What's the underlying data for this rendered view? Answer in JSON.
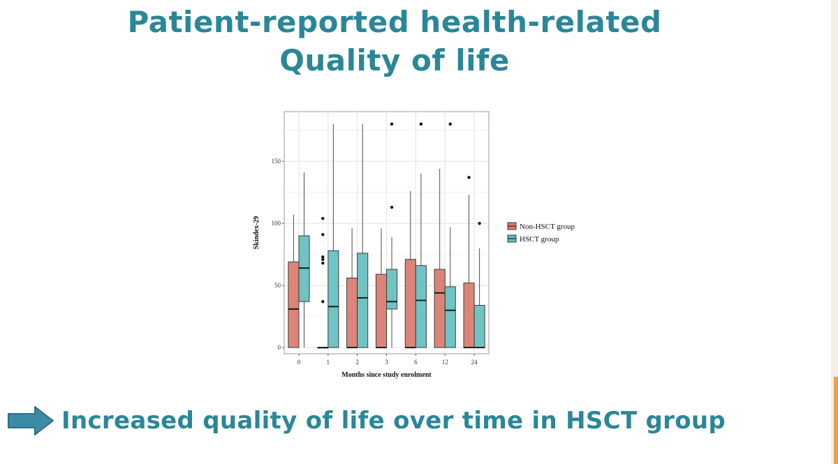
{
  "slide": {
    "title_line1": "Patient-reported health-related",
    "title_line2": "Quality of life",
    "takeaway": "Increased quality of life over time in HSCT group"
  },
  "colors": {
    "title": "#2a8797",
    "non_hsct": "#d9776a",
    "hsct": "#5fbdbd",
    "arrow": "#3b8aa6"
  },
  "chart_data": {
    "type": "boxplot",
    "xlabel": "Months since study enrolment",
    "ylabel": "Skindex-29",
    "ylim": [
      -5,
      190
    ],
    "yticks": [
      0,
      50,
      100,
      150
    ],
    "grid": true,
    "legend_position": "right",
    "categories": [
      "0",
      "1",
      "2",
      "3",
      "6",
      "12",
      "24"
    ],
    "series": [
      {
        "name": "Non-HSCT group",
        "color": "#d9776a",
        "boxes": [
          {
            "low": 0,
            "q1": 0,
            "median": 31,
            "q3": 69,
            "high": 107,
            "outliers": []
          },
          {
            "low": 0,
            "q1": 0,
            "median": 0,
            "q3": 0,
            "high": 0,
            "outliers": [
              37,
              68,
              71,
              73,
              91,
              104
            ]
          },
          {
            "low": 0,
            "q1": 0,
            "median": 0,
            "q3": 56,
            "high": 96,
            "outliers": []
          },
          {
            "low": 0,
            "q1": 0,
            "median": 0,
            "q3": 59,
            "high": 96,
            "outliers": []
          },
          {
            "low": 0,
            "q1": 0,
            "median": 0,
            "q3": 71,
            "high": 126,
            "outliers": []
          },
          {
            "low": 0,
            "q1": 0,
            "median": 44,
            "q3": 63,
            "high": 144,
            "outliers": []
          },
          {
            "low": 0,
            "q1": 0,
            "median": 0,
            "q3": 52,
            "high": 123,
            "outliers": [
              137
            ]
          }
        ]
      },
      {
        "name": "HSCT group",
        "color": "#5fbdbd",
        "boxes": [
          {
            "low": 0,
            "q1": 37,
            "median": 64,
            "q3": 90,
            "high": 141,
            "outliers": []
          },
          {
            "low": 0,
            "q1": 0,
            "median": 33,
            "q3": 78,
            "high": 180,
            "outliers": []
          },
          {
            "low": 0,
            "q1": 0,
            "median": 40,
            "q3": 76,
            "high": 180,
            "outliers": []
          },
          {
            "low": 0,
            "q1": 31,
            "median": 37,
            "q3": 63,
            "high": 89,
            "outliers": [
              113,
              180
            ]
          },
          {
            "low": 0,
            "q1": 0,
            "median": 38,
            "q3": 66,
            "high": 140,
            "outliers": [
              180
            ]
          },
          {
            "low": 0,
            "q1": 0,
            "median": 30,
            "q3": 49,
            "high": 97,
            "outliers": [
              180
            ]
          },
          {
            "low": 0,
            "q1": 0,
            "median": 0,
            "q3": 34,
            "high": 80,
            "outliers": [
              100
            ]
          }
        ]
      }
    ]
  }
}
